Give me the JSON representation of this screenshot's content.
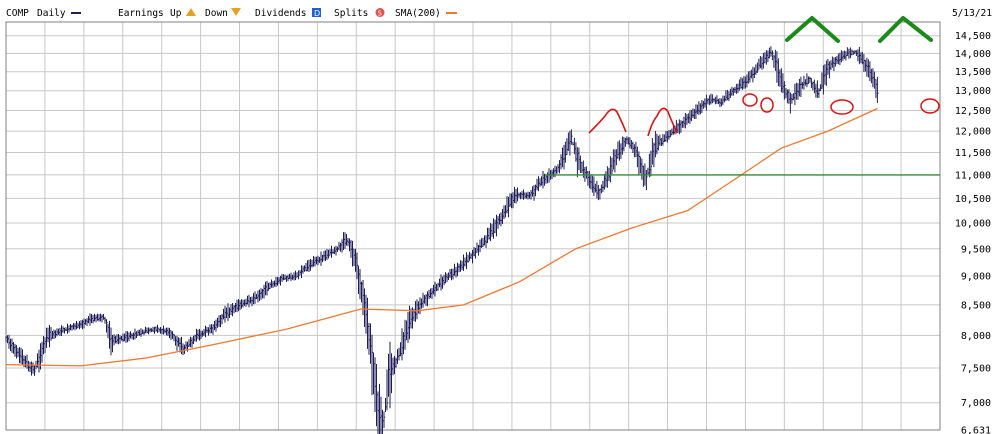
{
  "legend": {
    "symbol": "COMP",
    "period": "Daily",
    "earnings_label": "Earnings",
    "up_label": "Up",
    "down_label": "Down",
    "dividends_label": "Dividends",
    "dividends_glyph": "D",
    "splits_label": "Splits",
    "splits_glyph": "S",
    "sma_label": "SMA(200)",
    "date": "5/13/21"
  },
  "colors": {
    "price_bars": "#1e1e5a",
    "sma": "#f07830",
    "grid": "#c8c8c8",
    "frame": "#808080",
    "support_line": "#3a8a3a",
    "annotation_red": "#e01010",
    "annotation_green": "#1a8a1a",
    "up_glyph": "#e8a020",
    "down_glyph": "#e8a020",
    "dividend_glyph": "#2060d0",
    "split_glyph": "#e05050"
  },
  "chart_data": {
    "type": "ohlc",
    "y_scale": "log",
    "ylim": [
      6631,
      14900
    ],
    "y_ticks": [
      "14,500",
      "14,000",
      "13,500",
      "13,000",
      "12,500",
      "12,000",
      "11,500",
      "11,000",
      "10,500",
      "10,000",
      "9,500",
      "9,000",
      "8,500",
      "8,000",
      "7,500",
      "7,000",
      "6,631"
    ],
    "y_tick_values": [
      14500,
      14000,
      13500,
      13000,
      12500,
      12000,
      11500,
      11000,
      10500,
      10000,
      9500,
      9000,
      8500,
      8000,
      7500,
      7000,
      6631
    ],
    "series": [
      {
        "name": "COMP",
        "close": [
          {
            "t": 0.0,
            "v": 7950
          },
          {
            "t": 0.015,
            "v": 7700
          },
          {
            "t": 0.03,
            "v": 7450
          },
          {
            "t": 0.045,
            "v": 7980
          },
          {
            "t": 0.06,
            "v": 8080
          },
          {
            "t": 0.075,
            "v": 8150
          },
          {
            "t": 0.09,
            "v": 8250
          },
          {
            "t": 0.105,
            "v": 8300
          },
          {
            "t": 0.113,
            "v": 7900
          },
          {
            "t": 0.13,
            "v": 7980
          },
          {
            "t": 0.145,
            "v": 8050
          },
          {
            "t": 0.16,
            "v": 8100
          },
          {
            "t": 0.175,
            "v": 8050
          },
          {
            "t": 0.19,
            "v": 7800
          },
          {
            "t": 0.205,
            "v": 8000
          },
          {
            "t": 0.22,
            "v": 8100
          },
          {
            "t": 0.235,
            "v": 8350
          },
          {
            "t": 0.25,
            "v": 8500
          },
          {
            "t": 0.265,
            "v": 8600
          },
          {
            "t": 0.28,
            "v": 8800
          },
          {
            "t": 0.295,
            "v": 8950
          },
          {
            "t": 0.31,
            "v": 9000
          },
          {
            "t": 0.325,
            "v": 9200
          },
          {
            "t": 0.34,
            "v": 9350
          },
          {
            "t": 0.355,
            "v": 9500
          },
          {
            "t": 0.365,
            "v": 9700
          },
          {
            "t": 0.372,
            "v": 9400
          },
          {
            "t": 0.378,
            "v": 8950
          },
          {
            "t": 0.385,
            "v": 8400
          },
          {
            "t": 0.392,
            "v": 7600
          },
          {
            "t": 0.398,
            "v": 6950
          },
          {
            "t": 0.404,
            "v": 6700
          },
          {
            "t": 0.41,
            "v": 7400
          },
          {
            "t": 0.42,
            "v": 7650
          },
          {
            "t": 0.43,
            "v": 8150
          },
          {
            "t": 0.44,
            "v": 8450
          },
          {
            "t": 0.455,
            "v": 8700
          },
          {
            "t": 0.47,
            "v": 8950
          },
          {
            "t": 0.485,
            "v": 9150
          },
          {
            "t": 0.5,
            "v": 9400
          },
          {
            "t": 0.515,
            "v": 9700
          },
          {
            "t": 0.53,
            "v": 10100
          },
          {
            "t": 0.545,
            "v": 10600
          },
          {
            "t": 0.56,
            "v": 10550
          },
          {
            "t": 0.575,
            "v": 10900
          },
          {
            "t": 0.59,
            "v": 11100
          },
          {
            "t": 0.605,
            "v": 11850
          },
          {
            "t": 0.613,
            "v": 11300
          },
          {
            "t": 0.625,
            "v": 10900
          },
          {
            "t": 0.635,
            "v": 10600
          },
          {
            "t": 0.645,
            "v": 11000
          },
          {
            "t": 0.655,
            "v": 11500
          },
          {
            "t": 0.665,
            "v": 11800
          },
          {
            "t": 0.675,
            "v": 11500
          },
          {
            "t": 0.685,
            "v": 10900
          },
          {
            "t": 0.695,
            "v": 11650
          },
          {
            "t": 0.71,
            "v": 11900
          },
          {
            "t": 0.725,
            "v": 12200
          },
          {
            "t": 0.74,
            "v": 12500
          },
          {
            "t": 0.755,
            "v": 12800
          },
          {
            "t": 0.765,
            "v": 12700
          },
          {
            "t": 0.78,
            "v": 13000
          },
          {
            "t": 0.795,
            "v": 13300
          },
          {
            "t": 0.81,
            "v": 13800
          },
          {
            "t": 0.82,
            "v": 14050
          },
          {
            "t": 0.83,
            "v": 13200
          },
          {
            "t": 0.84,
            "v": 12700
          },
          {
            "t": 0.85,
            "v": 13100
          },
          {
            "t": 0.86,
            "v": 13300
          },
          {
            "t": 0.87,
            "v": 12950
          },
          {
            "t": 0.88,
            "v": 13600
          },
          {
            "t": 0.89,
            "v": 13800
          },
          {
            "t": 0.9,
            "v": 14000
          },
          {
            "t": 0.91,
            "v": 14050
          },
          {
            "t": 0.92,
            "v": 13700
          },
          {
            "t": 0.928,
            "v": 13350
          },
          {
            "t": 0.933,
            "v": 13050
          }
        ]
      },
      {
        "name": "SMA(200)",
        "close": [
          {
            "t": 0.0,
            "v": 7550
          },
          {
            "t": 0.08,
            "v": 7530
          },
          {
            "t": 0.15,
            "v": 7650
          },
          {
            "t": 0.22,
            "v": 7850
          },
          {
            "t": 0.3,
            "v": 8100
          },
          {
            "t": 0.38,
            "v": 8430
          },
          {
            "t": 0.44,
            "v": 8400
          },
          {
            "t": 0.49,
            "v": 8500
          },
          {
            "t": 0.55,
            "v": 8900
          },
          {
            "t": 0.61,
            "v": 9500
          },
          {
            "t": 0.67,
            "v": 9900
          },
          {
            "t": 0.73,
            "v": 10250
          },
          {
            "t": 0.78,
            "v": 10900
          },
          {
            "t": 0.83,
            "v": 11600
          },
          {
            "t": 0.88,
            "v": 12000
          },
          {
            "t": 0.933,
            "v": 12550
          }
        ]
      }
    ],
    "support_level": 11000
  }
}
